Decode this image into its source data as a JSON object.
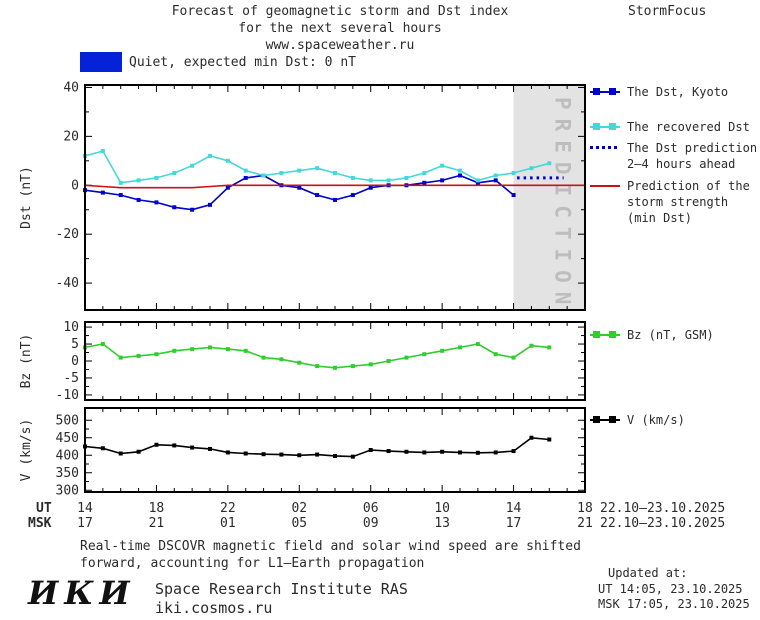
{
  "header": {
    "title_line1": "Forecast of geomagnetic storm and Dst index",
    "title_line2": "for the next several hours",
    "title_line3": "www.spaceweather.ru",
    "brand": "StormFocus"
  },
  "status": {
    "label": "Quiet, expected min Dst: 0 nT",
    "color": "#0522d8"
  },
  "legend": {
    "dst_items": [
      {
        "lines": [
          "The Dst, Kyoto"
        ],
        "color": "#0000cc",
        "marker": "square-line"
      },
      {
        "lines": [
          "The recovered Dst"
        ],
        "color": "#45d8d8",
        "marker": "square-line"
      },
      {
        "lines": [
          "The Dst prediction",
          "2–4 hours ahead"
        ],
        "color": "#0000cc",
        "marker": "dotted-line"
      },
      {
        "lines": [
          "Prediction of the",
          "storm strength",
          "(min Dst)"
        ],
        "color": "#cc1111",
        "marker": "line"
      }
    ],
    "bz_item": {
      "lines": [
        "Bz (nT, GSM)"
      ],
      "color": "#2fce2f",
      "marker": "square-line"
    },
    "v_item": {
      "lines": [
        "V (km/s)"
      ],
      "color": "#000000",
      "marker": "square-line"
    }
  },
  "axes": {
    "ut_label": "UT",
    "msk_label": "MSK",
    "ut_ticks": [
      "14",
      "18",
      "22",
      "02",
      "06",
      "10",
      "14",
      "18"
    ],
    "msk_ticks": [
      "17",
      "21",
      "01",
      "05",
      "09",
      "13",
      "17",
      "21"
    ],
    "date_range_ut": "22.10–23.10.2025",
    "date_range_msk": "22.10–23.10.2025"
  },
  "footer": {
    "note_line1": "Real-time DSCOVR magnetic field and solar wind speed are shifted",
    "note_line2": "forward, accounting for L1–Earth propagation",
    "updated_label": "Updated at:",
    "updated_ut": "UT  14:05, 23.10.2025",
    "updated_msk": "MSK 17:05, 23.10.2025",
    "logo": "ИКИ",
    "institute": "Space Research Institute RAS",
    "site": "iki.cosmos.ru"
  },
  "chart_data": [
    {
      "name": "dst",
      "type": "line",
      "ylabel": "Dst (nT)",
      "ylim": [
        -51,
        41
      ],
      "yticks": [
        40,
        20,
        0,
        -20,
        -40
      ],
      "xlim": [
        0,
        28
      ],
      "xtick_hours": [
        0,
        4,
        8,
        12,
        16,
        20,
        24,
        28
      ],
      "x_unit": "hours since 14:00 UT 22.10.2025",
      "prediction_band": {
        "label": "PREDICTION",
        "start": 24,
        "end": 28
      },
      "series": [
        {
          "name": "The Dst, Kyoto",
          "color": "#0000cc",
          "marker": "square",
          "x": [
            0,
            1,
            2,
            3,
            4,
            5,
            6,
            7,
            8,
            9,
            10,
            11,
            12,
            13,
            14,
            15,
            16,
            17,
            18,
            19,
            20,
            21,
            22,
            23,
            24
          ],
          "values": [
            -2,
            -3,
            -4,
            -6,
            -7,
            -9,
            -10,
            -8,
            -1,
            3,
            4,
            0,
            -1,
            -4,
            -6,
            -4,
            -1,
            0,
            0,
            1,
            2,
            4,
            1,
            2,
            -4
          ]
        },
        {
          "name": "The recovered Dst",
          "color": "#45d8d8",
          "marker": "square",
          "x": [
            0,
            1,
            2,
            3,
            4,
            5,
            6,
            7,
            8,
            9,
            10,
            11,
            12,
            13,
            14,
            15,
            16,
            17,
            18,
            19,
            20,
            21,
            22,
            23,
            24,
            25,
            26
          ],
          "values": [
            12,
            14,
            1,
            2,
            3,
            5,
            8,
            12,
            10,
            6,
            4,
            5,
            6,
            7,
            5,
            3,
            2,
            2,
            3,
            5,
            8,
            6,
            2,
            4,
            5,
            7,
            9
          ]
        },
        {
          "name": "The Dst prediction 2–4 hours ahead",
          "color": "#0000cc",
          "style": "dotted",
          "x": [
            24.2,
            25,
            26,
            26.8
          ],
          "values": [
            3,
            3,
            3,
            3
          ]
        },
        {
          "name": "Prediction of the storm strength (min Dst)",
          "color": "#cc1111",
          "x": [
            0,
            1,
            2,
            3,
            4,
            5,
            6,
            7,
            8,
            28
          ],
          "values": [
            0,
            -0.5,
            -1,
            -1,
            -1,
            -1,
            -1,
            -0.5,
            0,
            0
          ]
        }
      ]
    },
    {
      "name": "bz",
      "type": "line",
      "ylabel": "Bz (nT)",
      "ylim": [
        -11.5,
        11.5
      ],
      "yticks": [
        10,
        5,
        0,
        -5,
        -10
      ],
      "xlim": [
        0,
        28
      ],
      "xtick_hours": [
        0,
        4,
        8,
        12,
        16,
        20,
        24,
        28
      ],
      "series": [
        {
          "name": "Bz (nT, GSM)",
          "color": "#2fce2f",
          "marker": "square",
          "x": [
            0,
            1,
            2,
            3,
            4,
            5,
            6,
            7,
            8,
            9,
            10,
            11,
            12,
            13,
            14,
            15,
            16,
            17,
            18,
            19,
            20,
            21,
            22,
            23,
            24,
            25,
            26
          ],
          "values": [
            4,
            5,
            1,
            1.5,
            2,
            3,
            3.5,
            4,
            3.5,
            3,
            1,
            0.5,
            -0.5,
            -1.5,
            -2,
            -1.5,
            -1,
            0,
            1,
            2,
            3,
            4,
            5,
            2,
            1,
            4.5,
            4
          ]
        }
      ]
    },
    {
      "name": "v",
      "type": "line",
      "ylabel": "V (km/s)",
      "ylim": [
        295,
        535
      ],
      "yticks": [
        500,
        450,
        400,
        350,
        300
      ],
      "xlim": [
        0,
        28
      ],
      "xtick_hours": [
        0,
        4,
        8,
        12,
        16,
        20,
        24,
        28
      ],
      "series": [
        {
          "name": "V (km/s)",
          "color": "#000000",
          "marker": "square",
          "x": [
            0,
            1,
            2,
            3,
            4,
            5,
            6,
            7,
            8,
            9,
            10,
            11,
            12,
            13,
            14,
            15,
            16,
            17,
            18,
            19,
            20,
            21,
            22,
            23,
            24,
            25,
            26
          ],
          "values": [
            425,
            420,
            405,
            410,
            430,
            428,
            422,
            418,
            408,
            405,
            403,
            402,
            400,
            402,
            398,
            396,
            415,
            412,
            410,
            408,
            410,
            408,
            407,
            408,
            412,
            450,
            445
          ]
        }
      ]
    }
  ]
}
